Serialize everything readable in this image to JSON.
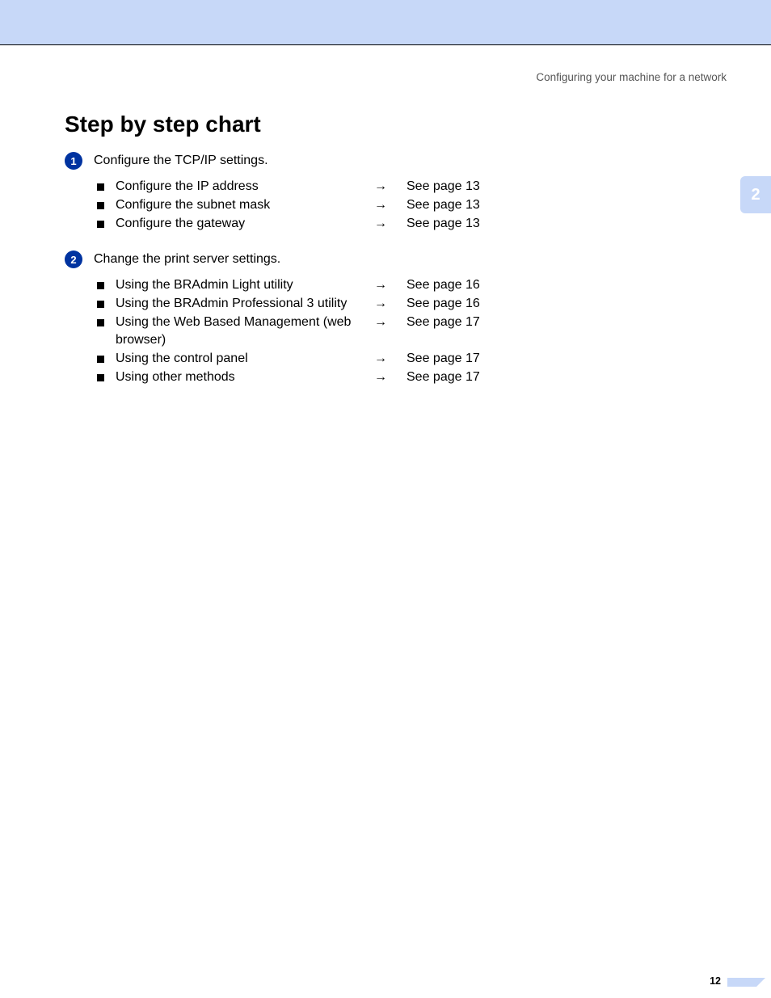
{
  "colors": {
    "header_band": "#c7d8f8",
    "side_tab_bg": "#c7d8f8",
    "side_tab_text": "#ffffff",
    "step_badge_bg": "#0033a0",
    "step_badge_text": "#ffffff",
    "body_text": "#000000",
    "muted_text": "#555555",
    "page_bg": "#ffffff",
    "bullet": "#000000"
  },
  "header": {
    "running_title": "Configuring your machine for a network"
  },
  "side_tab": {
    "chapter_number": "2"
  },
  "title": "Step by step chart",
  "steps": [
    {
      "number": "1",
      "text": "Configure the TCP/IP settings.",
      "items": [
        {
          "label": "Configure the IP address",
          "arrow": "→",
          "ref": "See page 13"
        },
        {
          "label": "Configure the subnet mask",
          "arrow": "→",
          "ref": "See page 13"
        },
        {
          "label": "Configure the gateway",
          "arrow": "→",
          "ref": "See page 13"
        }
      ]
    },
    {
      "number": "2",
      "text": "Change the print server settings.",
      "items": [
        {
          "label": "Using the BRAdmin Light utility",
          "arrow": "→",
          "ref": "See page 16"
        },
        {
          "label": "Using the BRAdmin Professional 3 utility",
          "arrow": "→",
          "ref": "See page 16"
        },
        {
          "label": "Using the Web Based Management (web browser)",
          "arrow": "→",
          "ref": "See page 17"
        },
        {
          "label": "Using the control panel",
          "arrow": "→",
          "ref": "See page 17"
        },
        {
          "label": "Using other methods",
          "arrow": "→",
          "ref": "See page 17"
        }
      ]
    }
  ],
  "footer": {
    "page_number": "12"
  }
}
